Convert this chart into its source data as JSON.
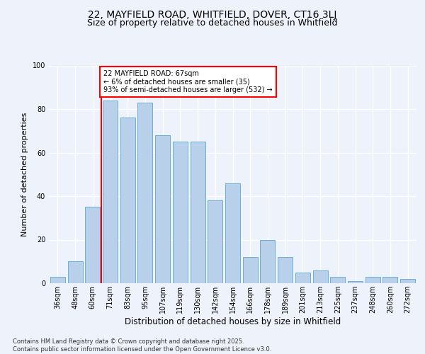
{
  "title1": "22, MAYFIELD ROAD, WHITFIELD, DOVER, CT16 3LJ",
  "title2": "Size of property relative to detached houses in Whitfield",
  "xlabel": "Distribution of detached houses by size in Whitfield",
  "ylabel": "Number of detached properties",
  "bin_labels": [
    "36sqm",
    "48sqm",
    "60sqm",
    "71sqm",
    "83sqm",
    "95sqm",
    "107sqm",
    "119sqm",
    "130sqm",
    "142sqm",
    "154sqm",
    "166sqm",
    "178sqm",
    "189sqm",
    "201sqm",
    "213sqm",
    "225sqm",
    "237sqm",
    "248sqm",
    "260sqm",
    "272sqm"
  ],
  "bar_heights": [
    3,
    10,
    35,
    84,
    76,
    83,
    68,
    65,
    65,
    38,
    46,
    12,
    20,
    12,
    5,
    6,
    3,
    1,
    3,
    3,
    2
  ],
  "bar_color": "#b8d0ea",
  "bar_edge_color": "#6aaed6",
  "property_line_color": "red",
  "annotation_text": "22 MAYFIELD ROAD: 67sqm\n← 6% of detached houses are smaller (35)\n93% of semi-detached houses are larger (532) →",
  "annotation_box_color": "white",
  "annotation_box_edge_color": "red",
  "ylim": [
    0,
    100
  ],
  "yticks": [
    0,
    20,
    40,
    60,
    80,
    100
  ],
  "background_color": "#eef2fa",
  "grid_color": "#ffffff",
  "footer_text": "Contains HM Land Registry data © Crown copyright and database right 2025.\nContains public sector information licensed under the Open Government Licence v3.0.",
  "title_fontsize": 10,
  "subtitle_fontsize": 9,
  "xlabel_fontsize": 8.5,
  "ylabel_fontsize": 8,
  "tick_fontsize": 7,
  "annotation_fontsize": 7,
  "footer_fontsize": 6
}
